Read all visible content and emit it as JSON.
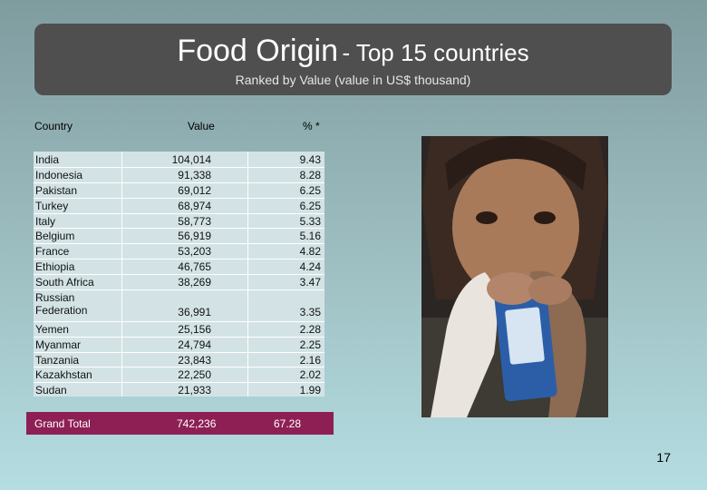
{
  "title": {
    "main": "Food Origin",
    "suffix": "- Top 15 countries",
    "subtitle": "Ranked by Value (value in US$ thousand)"
  },
  "columns": {
    "country": "Country",
    "value": "Value",
    "pct": "% *"
  },
  "rows": [
    {
      "country": "India",
      "value": "104,014",
      "pct": "9.43"
    },
    {
      "country": "Indonesia",
      "value": "91,338",
      "pct": "8.28"
    },
    {
      "country": "Pakistan",
      "value": "69,012",
      "pct": "6.25"
    },
    {
      "country": "Turkey",
      "value": "68,974",
      "pct": "6.25"
    },
    {
      "country": "Italy",
      "value": "58,773",
      "pct": "5.33"
    },
    {
      "country": "Belgium",
      "value": "56,919",
      "pct": "5.16"
    },
    {
      "country": "France",
      "value": "53,203",
      "pct": "4.82"
    },
    {
      "country": "Ethiopia",
      "value": "46,765",
      "pct": "4.24"
    },
    {
      "country": "South Africa",
      "value": "38,269",
      "pct": "3.47"
    },
    {
      "country": "Russian Federation",
      "value": "36,991",
      "pct": "3.35"
    },
    {
      "country": "Yemen",
      "value": "25,156",
      "pct": "2.28"
    },
    {
      "country": "Myanmar",
      "value": "24,794",
      "pct": "2.25"
    },
    {
      "country": "Tanzania",
      "value": "23,843",
      "pct": "2.16"
    },
    {
      "country": "Kazakhstan",
      "value": "22,250",
      "pct": "2.02"
    },
    {
      "country": "Sudan",
      "value": "21,933",
      "pct": "1.99"
    }
  ],
  "total": {
    "label": "Grand Total",
    "value": "742,236",
    "pct": "67.28"
  },
  "photo_icon": "child-holding-food-packet-photo",
  "slide_number": "17",
  "colors": {
    "title_box": "#4f4f4f",
    "total_bar": "#8e1f55",
    "table_bg": "#d3e3e5"
  }
}
